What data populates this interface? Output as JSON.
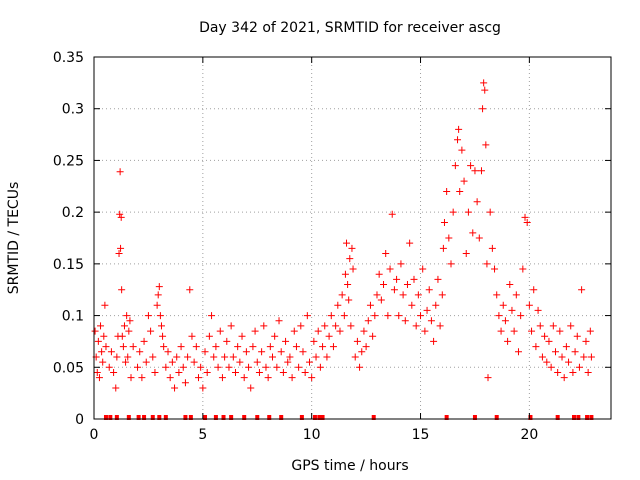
{
  "chart_data": {
    "type": "scatter",
    "title": "Day 342 of 2021, SRMTID for receiver ascg",
    "xlabel": "GPS time / hours",
    "ylabel": "SRMTID / TECUs",
    "xlim": [
      0,
      23.75
    ],
    "ylim": [
      0,
      0.35
    ],
    "grid": true,
    "marker": "+",
    "color": "#ff0000",
    "x_ticks": [
      {
        "value": 0,
        "label": "0"
      },
      {
        "value": 5,
        "label": "5"
      },
      {
        "value": 10,
        "label": "10"
      },
      {
        "value": 15,
        "label": "15"
      },
      {
        "value": 20,
        "label": "20"
      }
    ],
    "y_ticks": [
      {
        "value": 0,
        "label": "0"
      },
      {
        "value": 0.05,
        "label": "0.05"
      },
      {
        "value": 0.1,
        "label": "0.1"
      },
      {
        "value": 0.15,
        "label": "0.15"
      },
      {
        "value": 0.2,
        "label": "0.2"
      },
      {
        "value": 0.25,
        "label": "0.25"
      },
      {
        "value": 0.3,
        "label": "0.3"
      },
      {
        "value": 0.35,
        "label": "0.35"
      }
    ],
    "series": [
      {
        "name": "SRMTID",
        "points": [
          [
            0.05,
            0.085
          ],
          [
            0.1,
            0.06
          ],
          [
            0.15,
            0.045
          ],
          [
            0.2,
            0.075
          ],
          [
            0.25,
            0.04
          ],
          [
            0.3,
            0.09
          ],
          [
            0.35,
            0.065
          ],
          [
            0.4,
            0.055
          ],
          [
            0.45,
            0.08
          ],
          [
            0.5,
            0.11
          ],
          [
            0.55,
            0.07
          ],
          [
            0.7,
            0.05
          ],
          [
            0.8,
            0.065
          ],
          [
            0.9,
            0.045
          ],
          [
            1.0,
            0.03
          ],
          [
            1.05,
            0.06
          ],
          [
            1.1,
            0.08
          ],
          [
            1.15,
            0.16
          ],
          [
            1.18,
            0.198
          ],
          [
            1.2,
            0.239
          ],
          [
            1.22,
            0.165
          ],
          [
            1.25,
            0.195
          ],
          [
            1.27,
            0.125
          ],
          [
            1.3,
            0.08
          ],
          [
            1.35,
            0.07
          ],
          [
            1.4,
            0.09
          ],
          [
            1.45,
            0.055
          ],
          [
            1.5,
            0.1
          ],
          [
            1.55,
            0.06
          ],
          [
            1.6,
            0.085
          ],
          [
            1.65,
            0.095
          ],
          [
            1.7,
            0.04
          ],
          [
            1.8,
            0.07
          ],
          [
            2.0,
            0.05
          ],
          [
            2.1,
            0.065
          ],
          [
            2.2,
            0.04
          ],
          [
            2.3,
            0.075
          ],
          [
            2.4,
            0.055
          ],
          [
            2.5,
            0.1
          ],
          [
            2.6,
            0.085
          ],
          [
            2.7,
            0.06
          ],
          [
            2.8,
            0.045
          ],
          [
            2.9,
            0.11
          ],
          [
            2.95,
            0.12
          ],
          [
            3.0,
            0.128
          ],
          [
            3.05,
            0.1
          ],
          [
            3.1,
            0.09
          ],
          [
            3.15,
            0.08
          ],
          [
            3.2,
            0.07
          ],
          [
            3.3,
            0.05
          ],
          [
            3.4,
            0.065
          ],
          [
            3.5,
            0.04
          ],
          [
            3.6,
            0.055
          ],
          [
            3.7,
            0.03
          ],
          [
            3.8,
            0.06
          ],
          [
            3.9,
            0.045
          ],
          [
            4.0,
            0.07
          ],
          [
            4.1,
            0.05
          ],
          [
            4.2,
            0.035
          ],
          [
            4.3,
            0.06
          ],
          [
            4.4,
            0.125
          ],
          [
            4.5,
            0.08
          ],
          [
            4.6,
            0.055
          ],
          [
            4.7,
            0.07
          ],
          [
            4.8,
            0.04
          ],
          [
            4.9,
            0.05
          ],
          [
            5.0,
            0.03
          ],
          [
            5.1,
            0.065
          ],
          [
            5.2,
            0.045
          ],
          [
            5.3,
            0.08
          ],
          [
            5.4,
            0.1
          ],
          [
            5.5,
            0.06
          ],
          [
            5.6,
            0.07
          ],
          [
            5.7,
            0.05
          ],
          [
            5.8,
            0.085
          ],
          [
            5.9,
            0.04
          ],
          [
            6.0,
            0.06
          ],
          [
            6.1,
            0.075
          ],
          [
            6.2,
            0.05
          ],
          [
            6.3,
            0.09
          ],
          [
            6.4,
            0.06
          ],
          [
            6.5,
            0.045
          ],
          [
            6.6,
            0.07
          ],
          [
            6.7,
            0.055
          ],
          [
            6.8,
            0.08
          ],
          [
            6.9,
            0.04
          ],
          [
            7.0,
            0.065
          ],
          [
            7.1,
            0.05
          ],
          [
            7.2,
            0.03
          ],
          [
            7.3,
            0.07
          ],
          [
            7.4,
            0.085
          ],
          [
            7.5,
            0.055
          ],
          [
            7.6,
            0.045
          ],
          [
            7.7,
            0.065
          ],
          [
            7.8,
            0.09
          ],
          [
            7.9,
            0.05
          ],
          [
            8.0,
            0.04
          ],
          [
            8.1,
            0.07
          ],
          [
            8.2,
            0.06
          ],
          [
            8.3,
            0.08
          ],
          [
            8.4,
            0.05
          ],
          [
            8.5,
            0.095
          ],
          [
            8.6,
            0.065
          ],
          [
            8.7,
            0.045
          ],
          [
            8.8,
            0.075
          ],
          [
            8.9,
            0.055
          ],
          [
            9.0,
            0.06
          ],
          [
            9.1,
            0.04
          ],
          [
            9.2,
            0.085
          ],
          [
            9.3,
            0.07
          ],
          [
            9.4,
            0.05
          ],
          [
            9.5,
            0.09
          ],
          [
            9.6,
            0.065
          ],
          [
            9.7,
            0.045
          ],
          [
            9.8,
            0.1
          ],
          [
            9.9,
            0.055
          ],
          [
            10.0,
            0.04
          ],
          [
            10.1,
            0.075
          ],
          [
            10.2,
            0.06
          ],
          [
            10.3,
            0.085
          ],
          [
            10.4,
            0.05
          ],
          [
            10.5,
            0.07
          ],
          [
            10.6,
            0.09
          ],
          [
            10.7,
            0.06
          ],
          [
            10.8,
            0.08
          ],
          [
            10.9,
            0.1
          ],
          [
            11.0,
            0.07
          ],
          [
            11.1,
            0.09
          ],
          [
            11.2,
            0.11
          ],
          [
            11.3,
            0.085
          ],
          [
            11.4,
            0.12
          ],
          [
            11.5,
            0.1
          ],
          [
            11.55,
            0.14
          ],
          [
            11.6,
            0.17
          ],
          [
            11.65,
            0.13
          ],
          [
            11.7,
            0.115
          ],
          [
            11.75,
            0.155
          ],
          [
            11.8,
            0.09
          ],
          [
            11.85,
            0.165
          ],
          [
            11.9,
            0.145
          ],
          [
            12.0,
            0.06
          ],
          [
            12.1,
            0.075
          ],
          [
            12.2,
            0.05
          ],
          [
            12.3,
            0.065
          ],
          [
            12.4,
            0.085
          ],
          [
            12.5,
            0.07
          ],
          [
            12.6,
            0.095
          ],
          [
            12.7,
            0.11
          ],
          [
            12.8,
            0.08
          ],
          [
            12.9,
            0.1
          ],
          [
            13.0,
            0.12
          ],
          [
            13.1,
            0.14
          ],
          [
            13.2,
            0.115
          ],
          [
            13.3,
            0.13
          ],
          [
            13.4,
            0.16
          ],
          [
            13.5,
            0.1
          ],
          [
            13.6,
            0.145
          ],
          [
            13.7,
            0.198
          ],
          [
            13.8,
            0.125
          ],
          [
            13.9,
            0.135
          ],
          [
            14.0,
            0.1
          ],
          [
            14.1,
            0.15
          ],
          [
            14.2,
            0.12
          ],
          [
            14.3,
            0.095
          ],
          [
            14.4,
            0.13
          ],
          [
            14.5,
            0.17
          ],
          [
            14.6,
            0.11
          ],
          [
            14.7,
            0.135
          ],
          [
            14.8,
            0.09
          ],
          [
            14.9,
            0.12
          ],
          [
            15.0,
            0.1
          ],
          [
            15.1,
            0.145
          ],
          [
            15.2,
            0.085
          ],
          [
            15.3,
            0.105
          ],
          [
            15.4,
            0.125
          ],
          [
            15.5,
            0.095
          ],
          [
            15.6,
            0.075
          ],
          [
            15.7,
            0.11
          ],
          [
            15.8,
            0.135
          ],
          [
            15.9,
            0.09
          ],
          [
            16.0,
            0.12
          ],
          [
            16.05,
            0.165
          ],
          [
            16.1,
            0.19
          ],
          [
            16.2,
            0.22
          ],
          [
            16.3,
            0.175
          ],
          [
            16.4,
            0.15
          ],
          [
            16.5,
            0.2
          ],
          [
            16.6,
            0.245
          ],
          [
            16.7,
            0.27
          ],
          [
            16.75,
            0.28
          ],
          [
            16.8,
            0.22
          ],
          [
            16.9,
            0.26
          ],
          [
            17.0,
            0.23
          ],
          [
            17.1,
            0.16
          ],
          [
            17.2,
            0.2
          ],
          [
            17.3,
            0.245
          ],
          [
            17.4,
            0.18
          ],
          [
            17.5,
            0.24
          ],
          [
            17.6,
            0.21
          ],
          [
            17.7,
            0.175
          ],
          [
            17.8,
            0.24
          ],
          [
            17.85,
            0.3
          ],
          [
            17.9,
            0.325
          ],
          [
            17.95,
            0.318
          ],
          [
            18.0,
            0.265
          ],
          [
            18.05,
            0.15
          ],
          [
            18.1,
            0.04
          ],
          [
            18.2,
            0.2
          ],
          [
            18.3,
            0.165
          ],
          [
            18.4,
            0.145
          ],
          [
            18.5,
            0.12
          ],
          [
            18.6,
            0.1
          ],
          [
            18.7,
            0.085
          ],
          [
            18.8,
            0.11
          ],
          [
            18.9,
            0.095
          ],
          [
            19.0,
            0.075
          ],
          [
            19.1,
            0.13
          ],
          [
            19.2,
            0.105
          ],
          [
            19.3,
            0.085
          ],
          [
            19.4,
            0.12
          ],
          [
            19.5,
            0.065
          ],
          [
            19.6,
            0.1
          ],
          [
            19.7,
            0.145
          ],
          [
            19.8,
            0.195
          ],
          [
            19.9,
            0.19
          ],
          [
            20.0,
            0.11
          ],
          [
            20.1,
            0.085
          ],
          [
            20.2,
            0.125
          ],
          [
            20.3,
            0.07
          ],
          [
            20.4,
            0.105
          ],
          [
            20.5,
            0.09
          ],
          [
            20.6,
            0.06
          ],
          [
            20.7,
            0.08
          ],
          [
            20.8,
            0.055
          ],
          [
            20.9,
            0.075
          ],
          [
            21.0,
            0.05
          ],
          [
            21.1,
            0.09
          ],
          [
            21.2,
            0.065
          ],
          [
            21.3,
            0.045
          ],
          [
            21.4,
            0.085
          ],
          [
            21.5,
            0.06
          ],
          [
            21.6,
            0.04
          ],
          [
            21.7,
            0.07
          ],
          [
            21.8,
            0.055
          ],
          [
            21.9,
            0.09
          ],
          [
            22.0,
            0.045
          ],
          [
            22.1,
            0.065
          ],
          [
            22.2,
            0.08
          ],
          [
            22.3,
            0.05
          ],
          [
            22.4,
            0.125
          ],
          [
            22.5,
            0.06
          ],
          [
            22.6,
            0.075
          ],
          [
            22.7,
            0.045
          ],
          [
            22.8,
            0.085
          ],
          [
            22.85,
            0.06
          ]
        ]
      }
    ],
    "zero_markers": [
      0.55,
      0.75,
      1.05,
      1.6,
      2.05,
      2.3,
      2.7,
      3.0,
      3.3,
      4.2,
      4.45,
      5.1,
      5.6,
      5.95,
      6.3,
      6.9,
      7.5,
      8.05,
      8.6,
      9.55,
      10.15,
      10.35,
      10.5,
      12.85,
      16.2,
      17.5,
      18.5,
      20.05,
      21.3,
      22.05,
      22.25,
      22.65,
      22.85
    ]
  }
}
